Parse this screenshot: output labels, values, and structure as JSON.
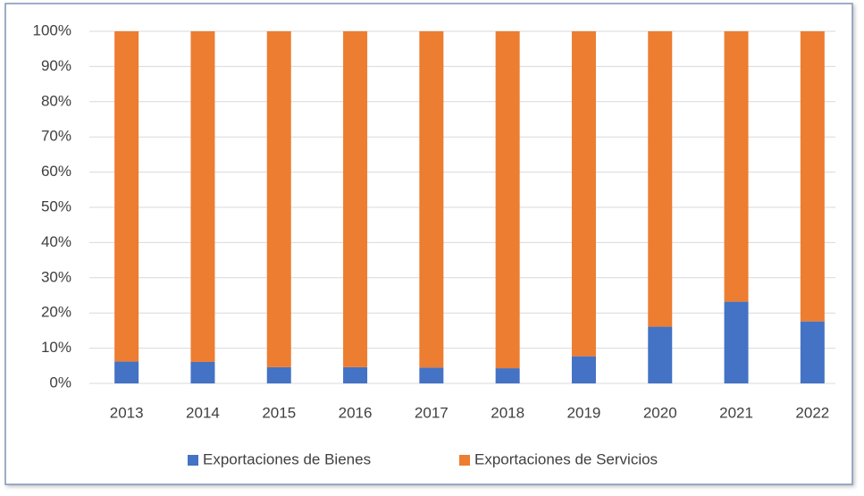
{
  "chart_data": {
    "type": "bar",
    "stacked": true,
    "categories": [
      "2013",
      "2014",
      "2015",
      "2016",
      "2017",
      "2018",
      "2019",
      "2020",
      "2021",
      "2022"
    ],
    "series": [
      {
        "name": "Exportaciones de Bienes",
        "color": "#4472c4",
        "values": [
          6.2,
          6.1,
          4.6,
          4.6,
          4.5,
          4.3,
          7.7,
          16.1,
          23.2,
          17.6
        ]
      },
      {
        "name": "Exportaciones de Servicios",
        "color": "#ed7d31",
        "values": [
          93.8,
          93.9,
          95.4,
          95.4,
          95.5,
          95.7,
          92.3,
          83.9,
          76.8,
          82.4
        ]
      }
    ],
    "ylim": [
      0,
      100
    ],
    "yticks": [
      {
        "value": 0,
        "label": "0%"
      },
      {
        "value": 10,
        "label": "10%"
      },
      {
        "value": 20,
        "label": "20%"
      },
      {
        "value": 30,
        "label": "30%"
      },
      {
        "value": 40,
        "label": "40%"
      },
      {
        "value": 50,
        "label": "50%"
      },
      {
        "value": 60,
        "label": "60%"
      },
      {
        "value": 70,
        "label": "70%"
      },
      {
        "value": 80,
        "label": "80%"
      },
      {
        "value": 90,
        "label": "90%"
      },
      {
        "value": 100,
        "label": "100%"
      }
    ],
    "grid": true,
    "legend": "bottom"
  }
}
